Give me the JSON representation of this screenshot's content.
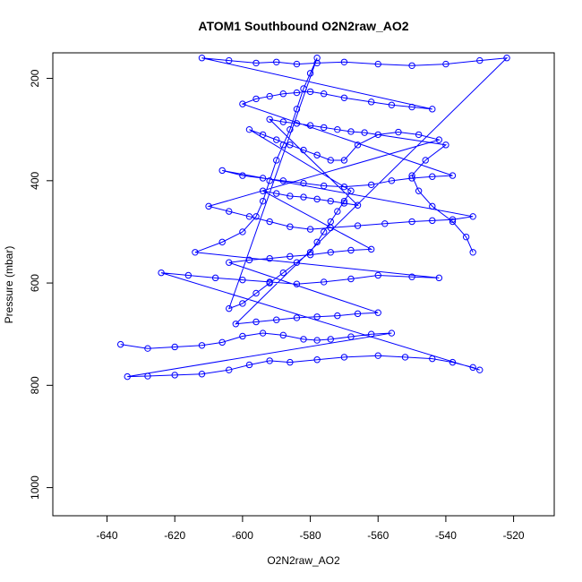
{
  "chart_data": {
    "type": "scatter",
    "title": "ATOM1 Southbound O2N2raw_AO2",
    "xlabel": "O2N2raw_AO2",
    "ylabel": "Pressure (mbar)",
    "xlim": [
      -656,
      -508
    ],
    "ylim": [
      1055,
      150
    ],
    "y_reversed": true,
    "x_ticks": [
      -640,
      -620,
      -600,
      -580,
      -560,
      -540,
      -520
    ],
    "y_ticks": [
      200,
      400,
      600,
      800,
      1000
    ],
    "grid": false,
    "legend": "none",
    "marker": "open-circle",
    "connected": true,
    "color": "#0000ff",
    "series": [
      {
        "values": [
          [
            -636,
            720
          ],
          [
            -628,
            728
          ],
          [
            -620,
            725
          ],
          [
            -612,
            722
          ],
          [
            -606,
            716
          ],
          [
            -600,
            704
          ],
          [
            -594,
            698
          ],
          [
            -588,
            702
          ],
          [
            -582,
            710
          ],
          [
            -578,
            712
          ],
          [
            -574,
            710
          ],
          [
            -568,
            705
          ],
          [
            -562,
            700
          ],
          [
            -556,
            698
          ],
          [
            -634,
            783
          ],
          [
            -628,
            782
          ],
          [
            -620,
            780
          ],
          [
            -612,
            778
          ],
          [
            -604,
            770
          ],
          [
            -598,
            760
          ],
          [
            -592,
            752
          ],
          [
            -586,
            755
          ],
          [
            -578,
            750
          ],
          [
            -570,
            745
          ],
          [
            -560,
            742
          ],
          [
            -552,
            745
          ],
          [
            -544,
            748
          ],
          [
            -538,
            755
          ],
          [
            -532,
            765
          ],
          [
            -530,
            770
          ],
          [
            -624,
            580
          ],
          [
            -616,
            585
          ],
          [
            -608,
            590
          ],
          [
            -600,
            594
          ],
          [
            -592,
            598
          ],
          [
            -584,
            602
          ],
          [
            -576,
            598
          ],
          [
            -568,
            592
          ],
          [
            -560,
            585
          ],
          [
            -550,
            588
          ],
          [
            -542,
            590
          ],
          [
            -614,
            540
          ],
          [
            -606,
            520
          ],
          [
            -600,
            500
          ],
          [
            -596,
            470
          ],
          [
            -594,
            440
          ],
          [
            -592,
            400
          ],
          [
            -590,
            360
          ],
          [
            -588,
            330
          ],
          [
            -586,
            300
          ],
          [
            -584,
            260
          ],
          [
            -582,
            220
          ],
          [
            -580,
            190
          ],
          [
            -578,
            160
          ],
          [
            -604,
            650
          ],
          [
            -600,
            640
          ],
          [
            -596,
            620
          ],
          [
            -592,
            600
          ],
          [
            -588,
            580
          ],
          [
            -584,
            560
          ],
          [
            -580,
            540
          ],
          [
            -578,
            520
          ],
          [
            -576,
            500
          ],
          [
            -574,
            480
          ],
          [
            -572,
            460
          ],
          [
            -570,
            440
          ],
          [
            -568,
            420
          ],
          [
            -598,
            300
          ],
          [
            -594,
            310
          ],
          [
            -590,
            320
          ],
          [
            -586,
            330
          ],
          [
            -582,
            340
          ],
          [
            -578,
            350
          ],
          [
            -574,
            360
          ],
          [
            -570,
            360
          ],
          [
            -566,
            330
          ],
          [
            -560,
            310
          ],
          [
            -554,
            305
          ],
          [
            -548,
            310
          ],
          [
            -542,
            320
          ],
          [
            -610,
            450
          ],
          [
            -604,
            460
          ],
          [
            -598,
            470
          ],
          [
            -592,
            480
          ],
          [
            -586,
            490
          ],
          [
            -580,
            495
          ],
          [
            -574,
            492
          ],
          [
            -566,
            488
          ],
          [
            -558,
            484
          ],
          [
            -550,
            480
          ],
          [
            -544,
            478
          ],
          [
            -538,
            476
          ],
          [
            -532,
            470
          ],
          [
            -606,
            380
          ],
          [
            -600,
            390
          ],
          [
            -594,
            395
          ],
          [
            -588,
            400
          ],
          [
            -582,
            405
          ],
          [
            -576,
            410
          ],
          [
            -570,
            412
          ],
          [
            -562,
            408
          ],
          [
            -556,
            400
          ],
          [
            -550,
            395
          ],
          [
            -544,
            392
          ],
          [
            -538,
            390
          ],
          [
            -600,
            250
          ],
          [
            -596,
            240
          ],
          [
            -592,
            235
          ],
          [
            -588,
            230
          ],
          [
            -584,
            228
          ],
          [
            -580,
            226
          ],
          [
            -576,
            230
          ],
          [
            -570,
            238
          ],
          [
            -562,
            246
          ],
          [
            -556,
            252
          ],
          [
            -550,
            256
          ],
          [
            -544,
            260
          ],
          [
            -612,
            160
          ],
          [
            -604,
            165
          ],
          [
            -596,
            170
          ],
          [
            -590,
            168
          ],
          [
            -584,
            172
          ],
          [
            -578,
            170
          ],
          [
            -570,
            168
          ],
          [
            -560,
            172
          ],
          [
            -550,
            175
          ],
          [
            -540,
            172
          ],
          [
            -530,
            165
          ],
          [
            -522,
            160
          ],
          [
            -602,
            680
          ],
          [
            -596,
            676
          ],
          [
            -590,
            672
          ],
          [
            -584,
            668
          ],
          [
            -578,
            666
          ],
          [
            -572,
            664
          ],
          [
            -566,
            660
          ],
          [
            -560,
            658
          ],
          [
            -604,
            560
          ],
          [
            -598,
            555
          ],
          [
            -592,
            552
          ],
          [
            -586,
            548
          ],
          [
            -580,
            545
          ],
          [
            -574,
            540
          ],
          [
            -568,
            536
          ],
          [
            -562,
            534
          ],
          [
            -594,
            420
          ],
          [
            -590,
            425
          ],
          [
            -586,
            430
          ],
          [
            -582,
            432
          ],
          [
            -578,
            436
          ],
          [
            -574,
            440
          ],
          [
            -570,
            444
          ],
          [
            -566,
            448
          ],
          [
            -592,
            280
          ],
          [
            -588,
            285
          ],
          [
            -584,
            288
          ],
          [
            -580,
            292
          ],
          [
            -576,
            296
          ],
          [
            -572,
            300
          ],
          [
            -568,
            304
          ],
          [
            -564,
            306
          ],
          [
            -540,
            330
          ],
          [
            -546,
            360
          ],
          [
            -550,
            390
          ],
          [
            -548,
            420
          ],
          [
            -544,
            450
          ],
          [
            -538,
            480
          ],
          [
            -534,
            510
          ],
          [
            -532,
            540
          ]
        ]
      }
    ]
  }
}
